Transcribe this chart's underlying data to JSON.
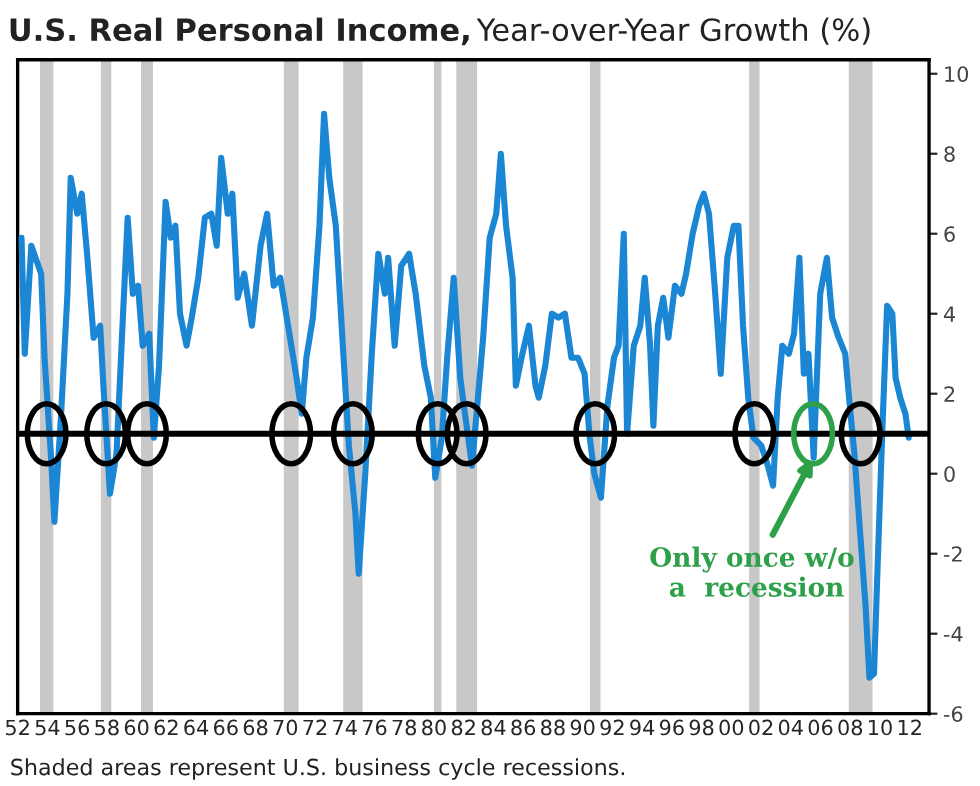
{
  "chart_data": {
    "type": "line",
    "title": "U.S. Real Personal Income,",
    "subtitle": "Year-over-Year Growth (%)",
    "annotations": [
      {
        "text": "Only once w/o\n a  recession",
        "x": 2005.5,
        "y": 0.4
      },
      "Shaded areas represent U.S. business cycle recessions."
    ],
    "series": [
      {
        "color": "#1a86d4",
        "x": [
          1952.26,
          1952.48,
          1952.92,
          1953.58,
          1953.81,
          1954.25,
          1954.47,
          1954.91,
          1955.35,
          1955.57,
          1956.01,
          1956.31,
          1956.67,
          1957.11,
          1957.55,
          1957.77,
          1958.21,
          1958.65,
          1959.09,
          1959.4,
          1959.75,
          1960.1,
          1960.41,
          1960.85,
          1961.16,
          1961.51,
          1961.95,
          1962.3,
          1962.61,
          1962.92,
          1963.36,
          1963.71,
          1964.15,
          1964.59,
          1965.03,
          1965.39,
          1965.69,
          1966.13,
          1966.44,
          1966.8,
          1967.24,
          1967.76,
          1968.34,
          1968.78,
          1969.22,
          1969.66,
          1970.32,
          1970.76,
          1971.11,
          1971.42,
          1971.86,
          1972.3,
          1972.61,
          1972.96,
          1973.4,
          1973.84,
          1974.28,
          1974.72,
          1974.94,
          1975.38,
          1975.82,
          1976.26,
          1976.7,
          1976.92,
          1977.36,
          1977.8,
          1978.33,
          1978.77,
          1979.35,
          1979.79,
          1980.09,
          1980.53,
          1980.89,
          1981.33,
          1981.77,
          1982.12,
          1982.56,
          1983.31,
          1983.75,
          1984.19,
          1984.5,
          1984.85,
          1985.29,
          1985.51,
          1985.95,
          1986.39,
          1986.83,
          1987.05,
          1987.49,
          1987.93,
          1988.37,
          1988.81,
          1989.25,
          1989.69,
          1990.13,
          1990.48,
          1990.79,
          1991.23,
          1991.67,
          1992.11,
          1992.42,
          1992.77,
          1992.99,
          1993.44,
          1993.88,
          1994.18,
          1994.54,
          1994.76,
          1995.06,
          1995.42,
          1995.77,
          1996.21,
          1996.65,
          1996.96,
          1997.4,
          1997.84,
          1998.15,
          1998.5,
          1998.94,
          1999.29,
          1999.73,
          2000.17,
          2000.48,
          2000.79,
          2001.14,
          2001.49,
          2002.02,
          2002.46,
          2002.81,
          2003.12,
          2003.43,
          2003.87,
          2004.22,
          2004.58,
          2004.88,
          2005.19,
          2005.54,
          2005.98,
          2006.43,
          2006.78,
          2007.22,
          2007.66,
          2007.97,
          2008.28,
          2008.63,
          2009.03,
          2009.29,
          2009.6,
          2009.86,
          2010.17,
          2010.48,
          2010.83,
          2011.05,
          2011.36,
          2011.71,
          2011.93
        ],
        "values": [
          5.9,
          3.0,
          5.7,
          5.0,
          2.9,
          0.4,
          -1.2,
          1.4,
          4.5,
          7.4,
          6.5,
          7.0,
          5.5,
          3.4,
          3.7,
          2.2,
          -0.5,
          0.5,
          4.0,
          6.4,
          4.5,
          4.7,
          3.2,
          3.5,
          0.9,
          2.7,
          6.8,
          5.9,
          6.2,
          4.0,
          3.2,
          3.9,
          4.9,
          6.4,
          6.5,
          5.7,
          7.9,
          6.5,
          7.0,
          4.4,
          5.0,
          3.7,
          5.7,
          6.5,
          4.7,
          4.9,
          3.4,
          2.4,
          1.5,
          2.9,
          3.9,
          6.2,
          9.0,
          7.4,
          6.2,
          3.4,
          0.7,
          -1.0,
          -2.5,
          0.0,
          3.0,
          5.5,
          4.5,
          5.4,
          3.2,
          5.2,
          5.5,
          4.5,
          2.7,
          1.9,
          -0.1,
          0.9,
          2.9,
          4.9,
          2.4,
          1.4,
          0.2,
          3.4,
          5.9,
          6.5,
          8.0,
          6.2,
          4.9,
          2.2,
          3.0,
          3.7,
          2.2,
          1.9,
          2.7,
          4.0,
          3.9,
          4.0,
          2.9,
          2.9,
          2.5,
          0.9,
          0.0,
          -0.6,
          1.7,
          2.9,
          3.2,
          6.0,
          1.0,
          3.2,
          3.7,
          4.9,
          3.2,
          1.2,
          3.7,
          4.4,
          3.4,
          4.7,
          4.5,
          5.0,
          6.0,
          6.7,
          7.0,
          6.5,
          4.4,
          2.5,
          5.4,
          6.2,
          6.2,
          3.7,
          1.9,
          0.9,
          0.7,
          0.2,
          -0.3,
          1.9,
          3.2,
          3.0,
          3.5,
          5.4,
          2.5,
          3.0,
          0.4,
          4.5,
          5.4,
          3.9,
          3.4,
          3.0,
          1.7,
          0.5,
          -1.3,
          -3.3,
          -5.1,
          -5.0,
          -2.1,
          1.2,
          4.2,
          4.0,
          2.4,
          1.9,
          1.5,
          0.9
        ]
      }
    ],
    "xlim": [
      1952,
      2013.3
    ],
    "xticks": [
      {
        "value": 1952,
        "label": "52"
      },
      {
        "value": 1954,
        "label": "54"
      },
      {
        "value": 1956,
        "label": "56"
      },
      {
        "value": 1958,
        "label": "58"
      },
      {
        "value": 1960,
        "label": "60"
      },
      {
        "value": 1962,
        "label": "62"
      },
      {
        "value": 1964,
        "label": "64"
      },
      {
        "value": 1966,
        "label": "66"
      },
      {
        "value": 1968,
        "label": "68"
      },
      {
        "value": 1970,
        "label": "70"
      },
      {
        "value": 1972,
        "label": "72"
      },
      {
        "value": 1974,
        "label": "74"
      },
      {
        "value": 1976,
        "label": "76"
      },
      {
        "value": 1978,
        "label": "78"
      },
      {
        "value": 1980,
        "label": "80"
      },
      {
        "value": 1982,
        "label": "82"
      },
      {
        "value": 1984,
        "label": "84"
      },
      {
        "value": 1986,
        "label": "86"
      },
      {
        "value": 1988,
        "label": "88"
      },
      {
        "value": 1990,
        "label": "90"
      },
      {
        "value": 1992,
        "label": "92"
      },
      {
        "value": 1994,
        "label": "94"
      },
      {
        "value": 1996,
        "label": "96"
      },
      {
        "value": 1998,
        "label": "98"
      },
      {
        "value": 2000,
        "label": "00"
      },
      {
        "value": 2002,
        "label": "02"
      },
      {
        "value": 2004,
        "label": "04"
      },
      {
        "value": 2006,
        "label": "06"
      },
      {
        "value": 2008,
        "label": "08"
      },
      {
        "value": 2010,
        "label": "10"
      },
      {
        "value": 2012,
        "label": "12"
      }
    ],
    "ylim": [
      -6,
      10.35
    ],
    "yticks": [
      -6,
      -4,
      -2,
      0,
      2,
      4,
      6,
      8,
      10
    ],
    "ref_lines": [
      {
        "axis": "y",
        "value": 1,
        "color": "#000000"
      }
    ],
    "bands": [
      {
        "axis": "x",
        "from": 1953.5,
        "to": 1954.4,
        "color": "#c8c8c8"
      },
      {
        "axis": "x",
        "from": 1957.6,
        "to": 1958.3,
        "color": "#c8c8c8"
      },
      {
        "axis": "x",
        "from": 1960.3,
        "to": 1961.1,
        "color": "#c8c8c8"
      },
      {
        "axis": "x",
        "from": 1969.9,
        "to": 1970.9,
        "color": "#c8c8c8"
      },
      {
        "axis": "x",
        "from": 1973.9,
        "to": 1975.2,
        "color": "#c8c8c8"
      },
      {
        "axis": "x",
        "from": 1980.0,
        "to": 1980.5,
        "color": "#c8c8c8"
      },
      {
        "axis": "x",
        "from": 1981.5,
        "to": 1982.9,
        "color": "#c8c8c8"
      },
      {
        "axis": "x",
        "from": 1990.5,
        "to": 1991.2,
        "color": "#c8c8c8"
      },
      {
        "axis": "x",
        "from": 2001.2,
        "to": 2001.9,
        "color": "#c8c8c8"
      },
      {
        "axis": "x",
        "from": 2007.9,
        "to": 2009.5,
        "color": "#c8c8c8"
      }
    ],
    "grid": false,
    "marker": "none",
    "line_style": "solid"
  }
}
